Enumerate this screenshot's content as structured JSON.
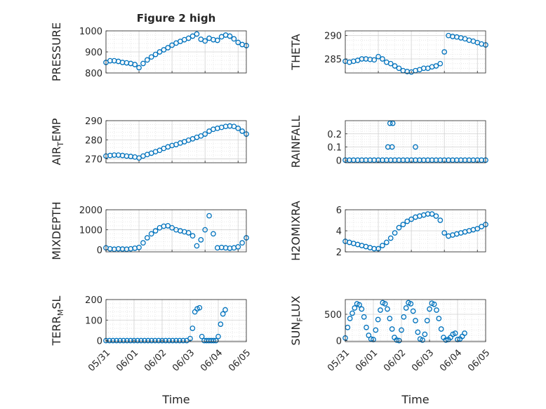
{
  "title": "Figure 2 high",
  "marker_color": "#0072BD",
  "chart_data": [
    {
      "type": "scatter",
      "ylabel": "PRESSURE",
      "ylim": [
        800,
        1000
      ],
      "yticks": [
        800,
        900,
        1000
      ],
      "xlim": [
        "05/31",
        "06/04 06:00"
      ],
      "xtick_labels": [],
      "series": [
        {
          "x": [
            "05/31 00:00",
            "05/31 03:00",
            "05/31 06:00",
            "05/31 09:00",
            "05/31 12:00",
            "05/31 15:00",
            "05/31 18:00",
            "05/31 21:00",
            "06/01 00:00",
            "06/01 03:00",
            "06/01 06:00",
            "06/01 09:00",
            "06/01 12:00",
            "06/01 15:00",
            "06/01 18:00",
            "06/01 21:00",
            "06/02 00:00",
            "06/02 03:00",
            "06/02 06:00",
            "06/02 09:00",
            "06/02 12:00",
            "06/02 15:00",
            "06/02 18:00",
            "06/02 21:00",
            "06/03 00:00",
            "06/03 03:00",
            "06/03 06:00",
            "06/03 09:00",
            "06/03 12:00",
            "06/03 15:00",
            "06/03 18:00",
            "06/03 21:00",
            "06/04 00:00",
            "06/04 03:00",
            "06/04 06:00"
          ],
          "y": [
            850,
            858,
            858,
            855,
            850,
            848,
            845,
            840,
            825,
            845,
            862,
            876,
            888,
            900,
            910,
            920,
            932,
            942,
            950,
            958,
            965,
            975,
            985,
            960,
            952,
            965,
            958,
            955,
            972,
            980,
            975,
            962,
            945,
            935,
            930
          ]
        }
      ]
    },
    {
      "type": "scatter",
      "ylabel": "THETA",
      "ylim": [
        282,
        291
      ],
      "yticks": [
        285,
        290
      ],
      "xlim": [
        "05/31",
        "06/04 06:00"
      ],
      "xtick_labels": [],
      "series": [
        {
          "x": [
            "05/31 00:00",
            "05/31 03:00",
            "05/31 06:00",
            "05/31 09:00",
            "05/31 12:00",
            "05/31 15:00",
            "05/31 18:00",
            "05/31 21:00",
            "06/01 00:00",
            "06/01 03:00",
            "06/01 06:00",
            "06/01 09:00",
            "06/01 12:00",
            "06/01 15:00",
            "06/01 18:00",
            "06/01 21:00",
            "06/02 00:00",
            "06/02 03:00",
            "06/02 06:00",
            "06/02 09:00",
            "06/02 12:00",
            "06/02 15:00",
            "06/02 18:00",
            "06/02 21:00",
            "06/03 00:00",
            "06/03 03:00",
            "06/03 06:00",
            "06/03 09:00",
            "06/03 12:00",
            "06/03 15:00",
            "06/03 18:00",
            "06/03 21:00",
            "06/04 00:00",
            "06/04 03:00",
            "06/04 06:00"
          ],
          "y": [
            284.5,
            284.3,
            284.5,
            284.7,
            285.0,
            285.0,
            284.9,
            284.8,
            285.5,
            285.0,
            284.3,
            284.0,
            283.5,
            283.0,
            282.5,
            282.3,
            282.2,
            282.5,
            282.7,
            283.0,
            283.0,
            283.3,
            283.5,
            284.0,
            286.5,
            290.0,
            289.8,
            289.7,
            289.5,
            289.3,
            289.0,
            288.8,
            288.5,
            288.2,
            288.0
          ]
        }
      ]
    },
    {
      "type": "scatter",
      "ylabel": "AIR",
      "ylabel_sub": "T",
      "ylabel_rest": "EMP",
      "ylim": [
        268,
        290
      ],
      "yticks": [
        270,
        280,
        290
      ],
      "xlim": [
        "05/31",
        "06/04 06:00"
      ],
      "xtick_labels": [],
      "series": [
        {
          "x": [
            "05/31 00:00",
            "05/31 03:00",
            "05/31 06:00",
            "05/31 09:00",
            "05/31 12:00",
            "05/31 15:00",
            "05/31 18:00",
            "05/31 21:00",
            "06/01 00:00",
            "06/01 03:00",
            "06/01 06:00",
            "06/01 09:00",
            "06/01 12:00",
            "06/01 15:00",
            "06/01 18:00",
            "06/01 21:00",
            "06/02 00:00",
            "06/02 03:00",
            "06/02 06:00",
            "06/02 09:00",
            "06/02 12:00",
            "06/02 15:00",
            "06/02 18:00",
            "06/02 21:00",
            "06/03 00:00",
            "06/03 03:00",
            "06/03 06:00",
            "06/03 09:00",
            "06/03 12:00",
            "06/03 15:00",
            "06/03 18:00",
            "06/03 21:00",
            "06/04 00:00",
            "06/04 03:00",
            "06/04 06:00"
          ],
          "y": [
            271.5,
            271.8,
            272.0,
            272.0,
            271.8,
            271.5,
            271.3,
            271.0,
            270.5,
            271.5,
            272.3,
            273.0,
            273.8,
            274.5,
            275.5,
            276.3,
            277.0,
            277.5,
            278.3,
            279.0,
            279.8,
            280.5,
            281.3,
            282.0,
            283.0,
            284.5,
            285.5,
            286.0,
            286.5,
            287.0,
            287.2,
            287.0,
            286.0,
            284.5,
            283.0
          ]
        }
      ]
    },
    {
      "type": "scatter",
      "ylabel": "RAINFALL",
      "ylim": [
        -0.02,
        0.3
      ],
      "yticks": [
        0,
        0.1,
        0.2
      ],
      "xlim": [
        "05/31",
        "06/04 06:00"
      ],
      "xtick_labels": [],
      "series": [
        {
          "x": [
            "05/31 00:00",
            "05/31 03:00",
            "05/31 06:00",
            "05/31 09:00",
            "05/31 12:00",
            "05/31 15:00",
            "05/31 18:00",
            "05/31 21:00",
            "06/01 00:00",
            "06/01 03:00",
            "06/01 06:00",
            "06/01 09:00",
            "06/01 12:00",
            "06/01 15:00",
            "06/01 18:00",
            "06/01 21:00",
            "06/02 00:00",
            "06/02 03:00",
            "06/02 06:00",
            "06/02 09:00",
            "06/02 12:00",
            "06/02 15:00",
            "06/02 18:00",
            "06/02 21:00",
            "06/03 00:00",
            "06/03 03:00",
            "06/03 06:00",
            "06/03 09:00",
            "06/03 12:00",
            "06/03 15:00",
            "06/03 18:00",
            "06/03 21:00",
            "06/04 00:00",
            "06/04 03:00",
            "06/04 06:00",
            "06/01 07:00",
            "06/01 08:30",
            "06/01 10:00",
            "06/01 10:30",
            "06/02 03:00"
          ],
          "y": [
            0,
            0,
            0,
            0,
            0,
            0,
            0,
            0,
            0,
            0,
            0,
            0,
            0,
            0,
            0,
            0,
            0,
            0,
            0,
            0,
            0,
            0,
            0,
            0,
            0,
            0,
            0,
            0,
            0,
            0,
            0,
            0,
            0,
            0,
            0,
            0.1,
            0.28,
            0.1,
            0.28,
            0.1
          ]
        }
      ]
    },
    {
      "type": "scatter",
      "ylabel": "MIXDEPTH",
      "ylim": [
        -100,
        2000
      ],
      "yticks": [
        0,
        1000,
        2000
      ],
      "xlim": [
        "05/31",
        "06/04 06:00"
      ],
      "xtick_labels": [],
      "series": [
        {
          "x": [
            "05/31 00:00",
            "05/31 03:00",
            "05/31 06:00",
            "05/31 09:00",
            "05/31 12:00",
            "05/31 15:00",
            "05/31 18:00",
            "05/31 21:00",
            "06/01 00:00",
            "06/01 03:00",
            "06/01 06:00",
            "06/01 09:00",
            "06/01 12:00",
            "06/01 15:00",
            "06/01 18:00",
            "06/01 21:00",
            "06/02 00:00",
            "06/02 03:00",
            "06/02 06:00",
            "06/02 09:00",
            "06/02 12:00",
            "06/02 15:00",
            "06/02 18:00",
            "06/02 21:00",
            "06/03 00:00",
            "06/03 03:00",
            "06/03 06:00",
            "06/03 09:00",
            "06/03 12:00",
            "06/03 15:00",
            "06/03 18:00",
            "06/03 21:00",
            "06/04 00:00",
            "06/04 03:00",
            "06/04 06:00"
          ],
          "y": [
            100,
            50,
            30,
            50,
            40,
            30,
            50,
            80,
            120,
            350,
            600,
            800,
            950,
            1100,
            1180,
            1200,
            1100,
            1000,
            950,
            900,
            850,
            700,
            200,
            500,
            1000,
            1700,
            800,
            100,
            120,
            100,
            80,
            100,
            150,
            350,
            600
          ]
        }
      ]
    },
    {
      "type": "scatter",
      "ylabel": "H2OMIXRA",
      "ylim": [
        2,
        6
      ],
      "yticks": [
        2,
        4,
        6
      ],
      "xlim": [
        "05/31",
        "06/04 06:00"
      ],
      "xtick_labels": [],
      "series": [
        {
          "x": [
            "05/31 00:00",
            "05/31 03:00",
            "05/31 06:00",
            "05/31 09:00",
            "05/31 12:00",
            "05/31 15:00",
            "05/31 18:00",
            "05/31 21:00",
            "06/01 00:00",
            "06/01 03:00",
            "06/01 06:00",
            "06/01 09:00",
            "06/01 12:00",
            "06/01 15:00",
            "06/01 18:00",
            "06/01 21:00",
            "06/02 00:00",
            "06/02 03:00",
            "06/02 06:00",
            "06/02 09:00",
            "06/02 12:00",
            "06/02 15:00",
            "06/02 18:00",
            "06/02 21:00",
            "06/03 00:00",
            "06/03 03:00",
            "06/03 06:00",
            "06/03 09:00",
            "06/03 12:00",
            "06/03 15:00",
            "06/03 18:00",
            "06/03 21:00",
            "06/04 00:00",
            "06/04 03:00",
            "06/04 06:00"
          ],
          "y": [
            3.0,
            2.9,
            2.8,
            2.7,
            2.6,
            2.5,
            2.4,
            2.3,
            2.3,
            2.6,
            2.9,
            3.3,
            3.8,
            4.3,
            4.6,
            4.9,
            5.1,
            5.3,
            5.4,
            5.5,
            5.6,
            5.6,
            5.4,
            5.0,
            3.8,
            3.5,
            3.6,
            3.7,
            3.8,
            3.9,
            4.0,
            4.1,
            4.2,
            4.4,
            4.6
          ]
        }
      ]
    },
    {
      "type": "scatter",
      "ylabel": "TERR",
      "ylabel_sub": "M",
      "ylabel_rest": "SL",
      "ylim": [
        -5,
        200
      ],
      "yticks": [
        0,
        100,
        200
      ],
      "xlim": [
        "05/31",
        "06/05"
      ],
      "xtick_labels": [
        "05/31",
        "06/01",
        "06/02",
        "06/03",
        "06/04",
        "06/05"
      ],
      "xlabel": "Time",
      "series": [
        {
          "x": [
            "05/31 00:00",
            "05/31 03:00",
            "05/31 06:00",
            "05/31 09:00",
            "05/31 12:00",
            "05/31 15:00",
            "05/31 18:00",
            "05/31 21:00",
            "06/01 00:00",
            "06/01 03:00",
            "06/01 06:00",
            "06/01 09:00",
            "06/01 12:00",
            "06/01 15:00",
            "06/01 18:00",
            "06/01 21:00",
            "06/02 00:00",
            "06/02 03:00",
            "06/02 06:00",
            "06/02 09:00",
            "06/02 12:00",
            "06/02 15:00",
            "06/02 18:00",
            "06/02 21:00",
            "06/03 00:00",
            "06/03 02:00",
            "06/03 04:00",
            "06/03 06:00",
            "06/03 08:00",
            "06/03 10:00",
            "06/03 12:00",
            "06/03 14:00",
            "06/03 16:00",
            "06/03 18:00",
            "06/03 20:00",
            "06/03 22:00",
            "06/04 00:00",
            "06/04 02:00",
            "06/04 04:00",
            "06/04 06:00"
          ],
          "y": [
            0,
            0,
            0,
            0,
            0,
            0,
            0,
            0,
            0,
            0,
            0,
            0,
            0,
            0,
            0,
            0,
            0,
            0,
            0,
            0,
            0,
            0,
            0,
            0,
            10,
            60,
            140,
            155,
            160,
            20,
            0,
            0,
            0,
            0,
            0,
            0,
            20,
            80,
            130,
            150
          ]
        }
      ]
    },
    {
      "type": "scatter",
      "ylabel": "SUN",
      "ylabel_sub": "F",
      "ylabel_rest": "LUX",
      "ylim": [
        -20,
        780
      ],
      "yticks": [
        0,
        500
      ],
      "xlim": [
        "05/31",
        "06/05"
      ],
      "xtick_labels": [
        "05/31",
        "06/01",
        "06/02",
        "06/03",
        "06/04",
        "06/05"
      ],
      "xlabel": "Time",
      "series": [
        {
          "x": [
            "05/31 00:00",
            "05/31 02:00",
            "05/31 04:00",
            "05/31 06:00",
            "05/31 08:00",
            "05/31 10:00",
            "05/31 12:00",
            "05/31 14:00",
            "05/31 16:00",
            "05/31 18:00",
            "05/31 20:00",
            "05/31 22:00",
            "06/01 00:00",
            "06/01 02:00",
            "06/01 04:00",
            "06/01 06:00",
            "06/01 08:00",
            "06/01 10:00",
            "06/01 12:00",
            "06/01 14:00",
            "06/01 16:00",
            "06/01 18:00",
            "06/01 20:00",
            "06/01 22:00",
            "06/02 00:00",
            "06/02 02:00",
            "06/02 04:00",
            "06/02 06:00",
            "06/02 08:00",
            "06/02 10:00",
            "06/02 12:00",
            "06/02 14:00",
            "06/02 16:00",
            "06/02 18:00",
            "06/02 20:00",
            "06/02 22:00",
            "06/03 00:00",
            "06/03 02:00",
            "06/03 04:00",
            "06/03 06:00",
            "06/03 08:00",
            "06/03 10:00",
            "06/03 12:00",
            "06/03 14:00",
            "06/03 16:00",
            "06/03 18:00",
            "06/03 20:00",
            "06/03 22:00",
            "06/04 00:00",
            "06/04 02:00",
            "06/04 04:00",
            "06/04 06:00"
          ],
          "y": [
            50,
            250,
            420,
            520,
            620,
            700,
            680,
            600,
            450,
            250,
            100,
            30,
            20,
            200,
            400,
            580,
            720,
            700,
            600,
            420,
            220,
            60,
            10,
            0,
            200,
            450,
            620,
            720,
            700,
            560,
            380,
            160,
            30,
            10,
            120,
            380,
            600,
            710,
            690,
            580,
            420,
            220,
            60,
            10,
            20,
            60,
            120,
            140,
            20,
            30,
            80,
            140
          ]
        }
      ]
    }
  ]
}
